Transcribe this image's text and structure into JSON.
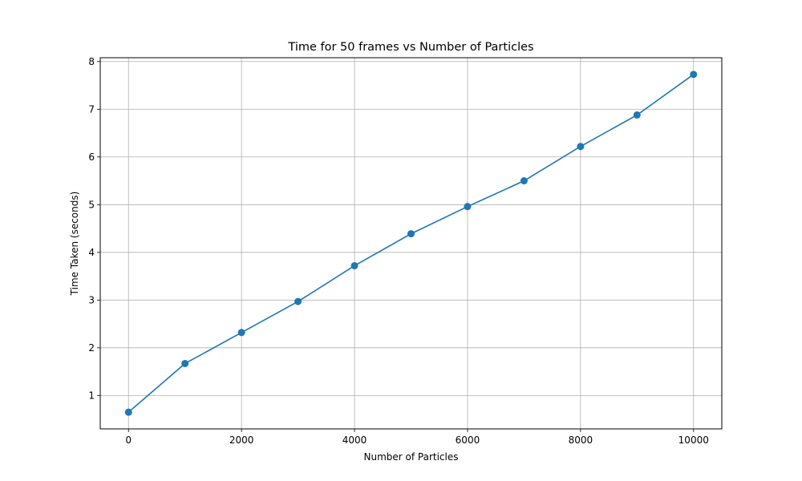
{
  "chart_data": {
    "type": "line",
    "title": "Time for 50 frames vs Number of Particles",
    "xlabel": "Number of Particles",
    "ylabel": "Time Taken (seconds)",
    "xlim": [
      -500,
      10500
    ],
    "ylim": [
      0.3,
      8.08
    ],
    "xticks": [
      0,
      2000,
      4000,
      6000,
      8000,
      10000
    ],
    "yticks": [
      1,
      2,
      3,
      4,
      5,
      6,
      7,
      8
    ],
    "grid": true,
    "legend": "none",
    "series": [
      {
        "color": "#1f77b4",
        "marker": "circle",
        "x": [
          0,
          1000,
          2000,
          3000,
          4000,
          5000,
          6000,
          7000,
          8000,
          9000,
          10000
        ],
        "y": [
          0.65,
          1.67,
          2.32,
          2.97,
          3.72,
          4.39,
          4.96,
          5.5,
          6.22,
          6.88,
          7.73
        ]
      }
    ]
  }
}
